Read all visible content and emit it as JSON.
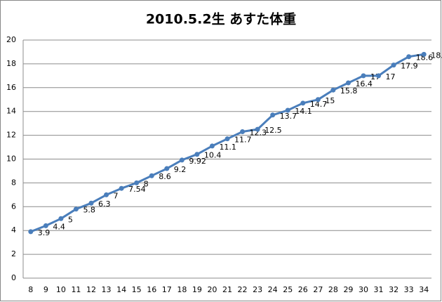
{
  "chart_data": {
    "type": "line",
    "title": "2010.5.2生 あすた体重",
    "categories": [
      "8",
      "9",
      "10",
      "11",
      "12",
      "13",
      "14",
      "15",
      "16",
      "17",
      "18",
      "19",
      "20",
      "21",
      "22",
      "23",
      "24",
      "25",
      "26",
      "27",
      "28",
      "29",
      "30",
      "31",
      "32",
      "33",
      "34"
    ],
    "values": [
      3.9,
      4.4,
      5,
      5.8,
      6.3,
      7,
      7.54,
      8,
      8.6,
      9.2,
      9.92,
      10.4,
      11.1,
      11.7,
      12.3,
      12.5,
      13.7,
      14.1,
      14.7,
      15,
      15.8,
      16.4,
      17,
      17,
      17.9,
      18.6,
      18.8
    ],
    "color": "#4a7ebb",
    "ylim": [
      0,
      20
    ],
    "yticks": [
      0,
      2,
      4,
      6,
      8,
      10,
      12,
      14,
      16,
      18,
      20
    ],
    "grid": true
  }
}
